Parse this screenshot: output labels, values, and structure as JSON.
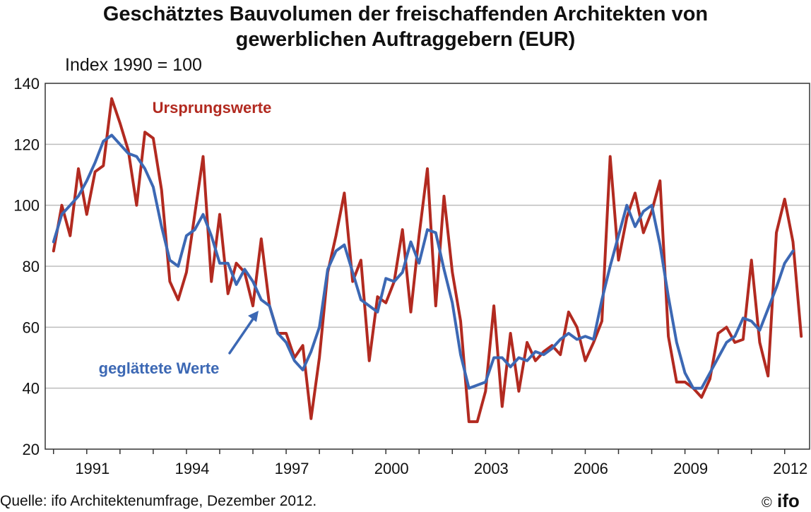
{
  "chart_data": {
    "type": "line",
    "title": "Geschätztes Bauvolumen der freischaffenden Architekten von gewerblichen Auftraggebern (EUR)",
    "subtitle": "Index 1990 = 100",
    "ylim": [
      20,
      140
    ],
    "yticks": [
      20,
      40,
      60,
      80,
      100,
      120,
      140
    ],
    "xlim": [
      1989.75,
      2012.75
    ],
    "xticks": [
      1991,
      1994,
      1997,
      2000,
      2003,
      2006,
      2009,
      2012
    ],
    "xtick_labels": [
      "1991",
      "1994",
      "1997",
      "2000",
      "2003",
      "2006",
      "2009",
      "2012"
    ],
    "grid": "horizontal",
    "series": [
      {
        "name": "Ursprungswerte",
        "color": "#b22a20",
        "x_start": 1990,
        "x_step": 0.25,
        "values": [
          85,
          100,
          90,
          112,
          97,
          111,
          113,
          135,
          127,
          118,
          100,
          124,
          122,
          105,
          75,
          69,
          78,
          97,
          116,
          75,
          97,
          71,
          81,
          78,
          67,
          89,
          67,
          58,
          58,
          50,
          54,
          30,
          50,
          78,
          90,
          104,
          75,
          82,
          49,
          70,
          68,
          75,
          92,
          65,
          90,
          112,
          67,
          103,
          78,
          62,
          29,
          29,
          39,
          67,
          34,
          58,
          39,
          55,
          49,
          52,
          54,
          51,
          65,
          60,
          49,
          55,
          62,
          116,
          82,
          96,
          104,
          91,
          98,
          108,
          57,
          42,
          42,
          40,
          37,
          43,
          58,
          60,
          55,
          56,
          82,
          55,
          44,
          91,
          102,
          88,
          57
        ]
      },
      {
        "name": "geglättete Werte",
        "color": "#3c68b4",
        "x_start": 1990,
        "x_step": 0.25,
        "values": [
          88,
          97,
          100,
          103,
          108,
          114,
          121,
          123,
          120,
          117,
          116,
          112,
          106,
          93,
          82,
          80,
          90,
          92,
          97,
          90,
          81,
          81,
          74,
          79,
          75,
          69,
          67,
          58,
          55,
          49,
          46,
          52,
          60,
          79,
          85,
          87,
          78,
          69,
          67,
          65,
          76,
          75,
          78,
          88,
          81,
          92,
          91,
          79,
          68,
          51,
          40,
          41,
          42,
          50,
          50,
          47,
          50,
          49,
          52,
          51,
          53,
          56,
          58,
          56,
          57,
          56,
          69,
          80,
          90,
          100,
          93,
          98,
          100,
          87,
          70,
          55,
          45,
          40,
          40,
          45,
          50,
          55,
          57,
          63,
          62,
          59,
          66,
          73,
          81,
          85
        ]
      }
    ],
    "annotations": {
      "red_label": "Ursprungswerte",
      "blue_label": "geglättete Werte"
    }
  },
  "header": {
    "title_line1": "Geschätztes Bauvolumen der freischaffenden Architekten von",
    "title_line2": "gewerblichen Auftraggebern (EUR)",
    "subtitle": "Index 1990 = 100"
  },
  "footer": {
    "source": "Quelle: ifo Architektenumfrage, Dezember  2012.",
    "copyright": "©",
    "logo": "ifo"
  }
}
